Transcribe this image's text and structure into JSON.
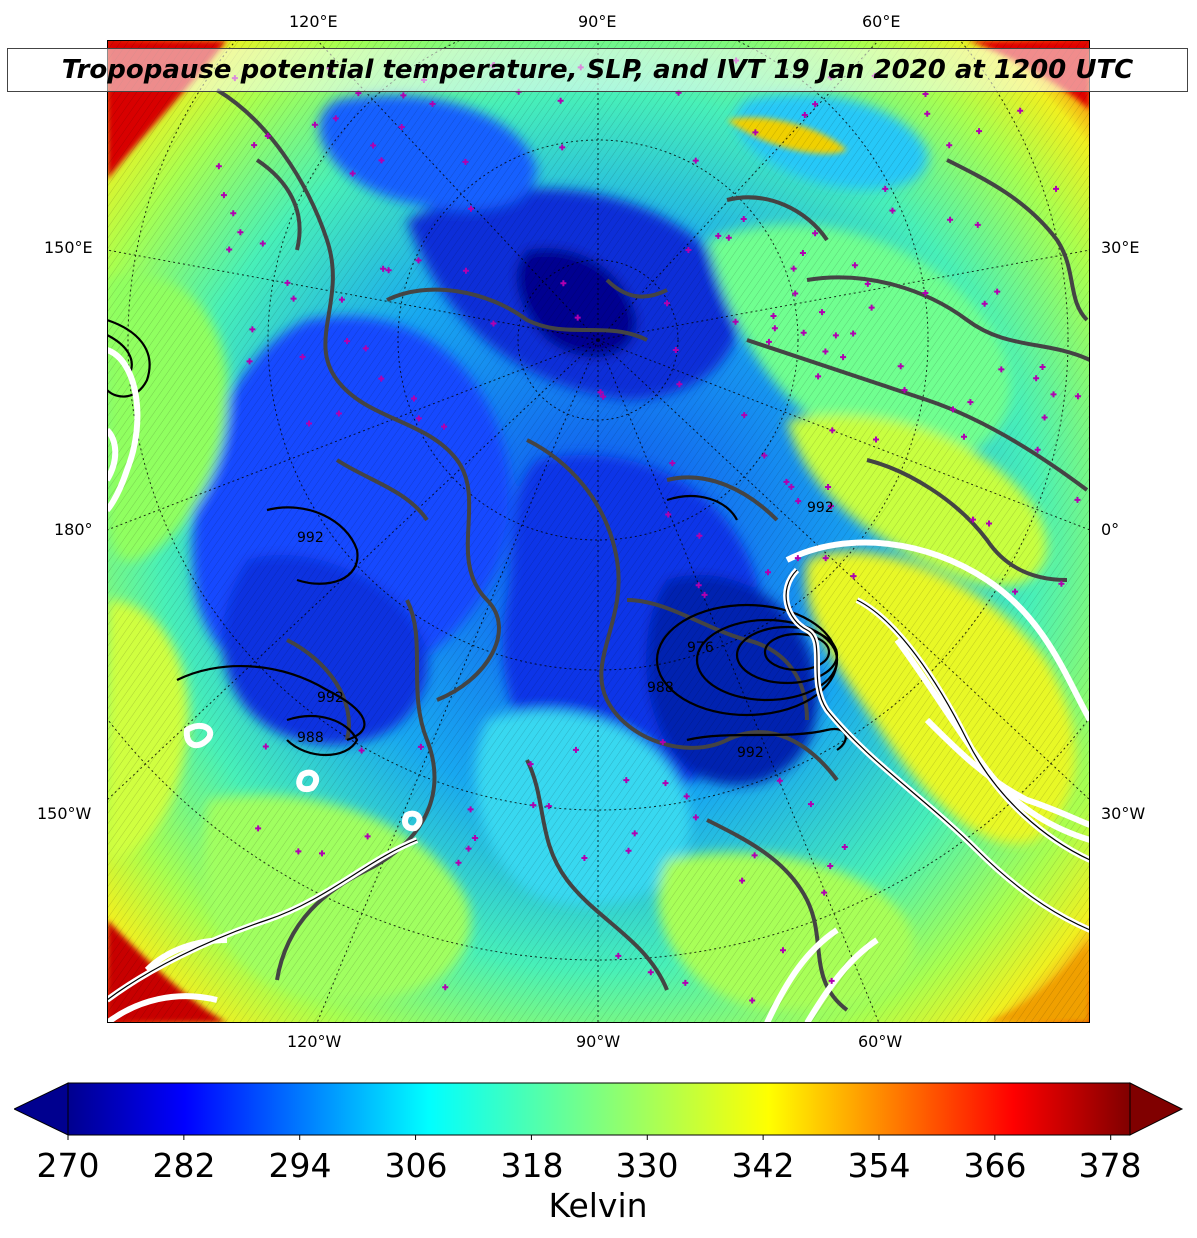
{
  "title": "Tropopause potential temperature, SLP, and IVT 19 Jan 2020 at 1200 UTC",
  "longitude_labels": {
    "top": [
      "120°E",
      "90°E",
      "60°E"
    ],
    "bottom": [
      "120°W",
      "90°W",
      "60°W"
    ],
    "left": [
      "150°E",
      "180°",
      "150°W"
    ],
    "right": [
      "30°E",
      "0°",
      "30°W"
    ]
  },
  "slp_contour_labels": [
    "992",
    "992",
    "988",
    "992",
    "976",
    "988",
    "992"
  ],
  "colorbar": {
    "ticks": [
      "270",
      "282",
      "294",
      "306",
      "318",
      "330",
      "342",
      "354",
      "366",
      "378"
    ],
    "units": "Kelvin",
    "range": [
      270,
      380
    ],
    "colormap": "jet",
    "extend": "both"
  },
  "colors": {
    "cold": "#00008f",
    "cool": "#1e5cff",
    "mid": "#30d4e0",
    "warm": "#c8ff38",
    "hot": "#ff1c00",
    "land_outline": "#444444",
    "station_marker": "#b000b0",
    "ivt_contour": "#ffffff"
  }
}
